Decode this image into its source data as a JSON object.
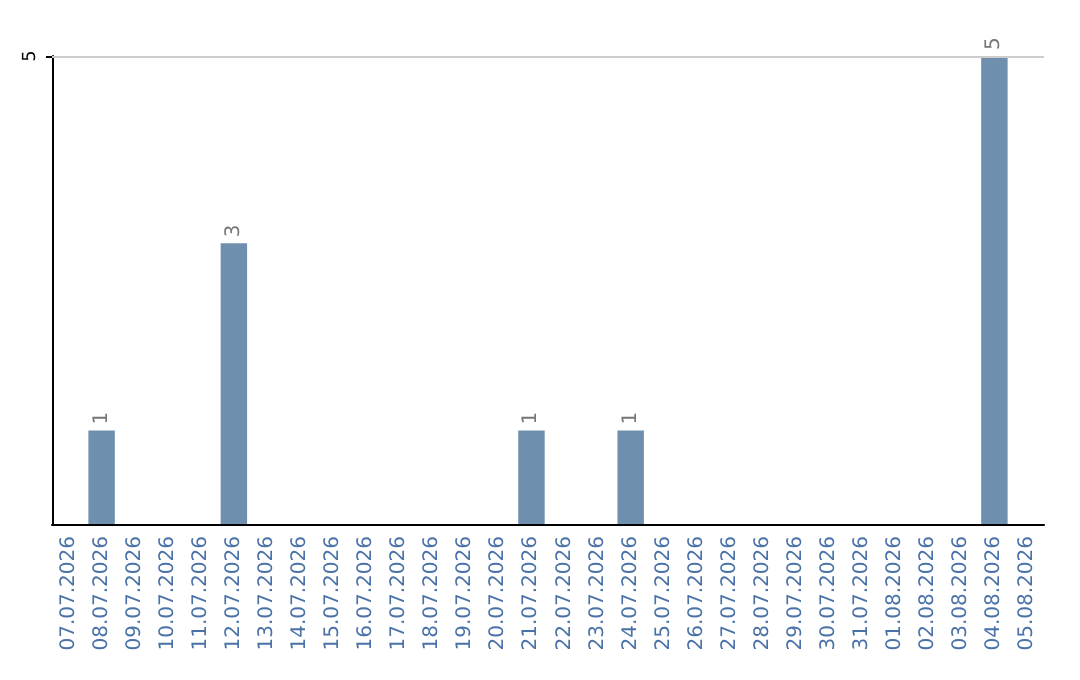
{
  "chart_data": {
    "type": "bar",
    "categories": [
      "07.07.2026",
      "08.07.2026",
      "09.07.2026",
      "10.07.2026",
      "11.07.2026",
      "12.07.2026",
      "13.07.2026",
      "14.07.2026",
      "15.07.2026",
      "16.07.2026",
      "17.07.2026",
      "18.07.2026",
      "19.07.2026",
      "20.07.2026",
      "21.07.2026",
      "22.07.2026",
      "23.07.2026",
      "24.07.2026",
      "25.07.2026",
      "26.07.2026",
      "27.07.2026",
      "28.07.2026",
      "29.07.2026",
      "30.07.2026",
      "31.07.2026",
      "01.08.2026",
      "02.08.2026",
      "03.08.2026",
      "04.08.2026",
      "05.08.2026"
    ],
    "values": [
      0,
      1,
      0,
      0,
      0,
      3,
      0,
      0,
      0,
      0,
      0,
      0,
      0,
      0,
      1,
      0,
      0,
      1,
      0,
      0,
      0,
      0,
      0,
      0,
      0,
      0,
      0,
      0,
      5,
      0
    ],
    "value_labels": [
      null,
      "1",
      null,
      null,
      null,
      "3",
      null,
      null,
      null,
      null,
      null,
      null,
      null,
      null,
      "1",
      null,
      null,
      "1",
      null,
      null,
      null,
      null,
      null,
      null,
      null,
      null,
      null,
      null,
      "5",
      null
    ],
    "color": "#6e8fad",
    "ylim": [
      0,
      5
    ],
    "yticks": [
      5
    ],
    "ref_lines": [
      {
        "axis": "y",
        "value": 5,
        "color": "#cccccc"
      }
    ]
  }
}
